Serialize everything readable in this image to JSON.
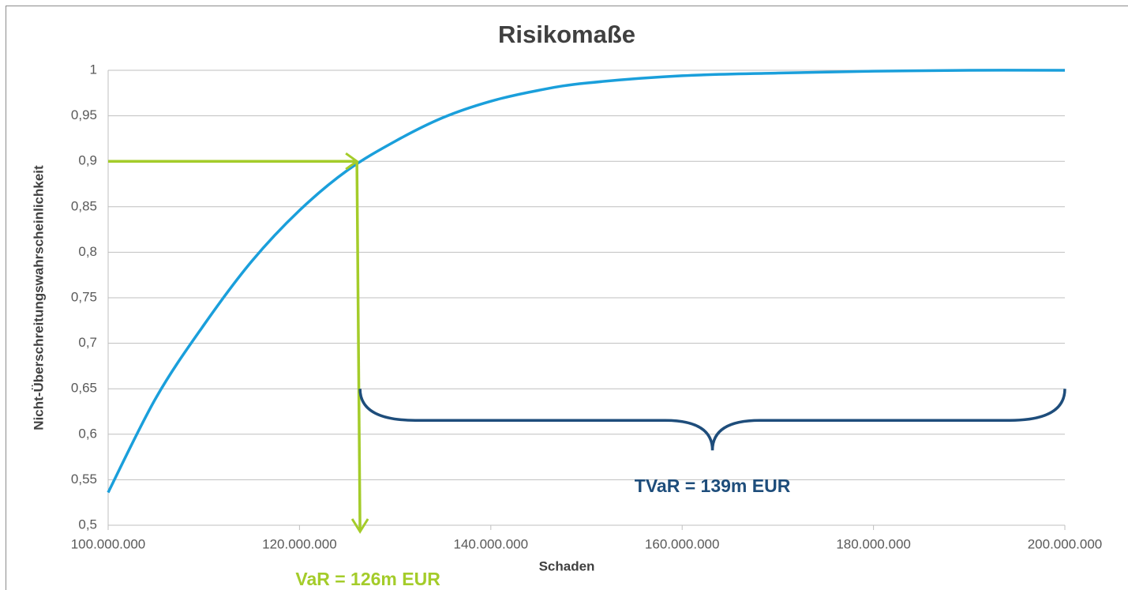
{
  "chart_data": {
    "type": "line",
    "title": "Risikomaße",
    "x_label": "Schaden",
    "y_label": "Nicht-Überschreitungswahrscheinlichkeit",
    "x": [
      100000000,
      105000000,
      110000000,
      115000000,
      120000000,
      125000000,
      130000000,
      135000000,
      140000000,
      145000000,
      150000000,
      160000000,
      170000000,
      180000000,
      190000000,
      200000000
    ],
    "series": [
      {
        "name": "Risikomaße",
        "color": "#1a9fdb",
        "values": [
          0.536,
          0.64,
          0.72,
          0.79,
          0.846,
          0.89,
          0.922,
          0.948,
          0.966,
          0.978,
          0.986,
          0.994,
          0.997,
          0.999,
          1,
          1
        ]
      }
    ],
    "xlim": [
      100000000,
      200000000
    ],
    "xticks": [
      {
        "value": 100000000,
        "label": "100.000.000"
      },
      {
        "value": 120000000,
        "label": "120.000.000"
      },
      {
        "value": 140000000,
        "label": "140.000.000"
      },
      {
        "value": 160000000,
        "label": "160.000.000"
      },
      {
        "value": 180000000,
        "label": "180.000.000"
      },
      {
        "value": 200000000,
        "label": "200.000.000"
      }
    ],
    "ylim": [
      0.5,
      1
    ],
    "yticks": [
      {
        "value": 0.5,
        "label": "0,5"
      },
      {
        "value": 0.55,
        "label": "0,55"
      },
      {
        "value": 0.6,
        "label": "0,6"
      },
      {
        "value": 0.65,
        "label": "0,65"
      },
      {
        "value": 0.7,
        "label": "0,7"
      },
      {
        "value": 0.75,
        "label": "0,75"
      },
      {
        "value": 0.8,
        "label": "0,8"
      },
      {
        "value": 0.85,
        "label": "0,85"
      },
      {
        "value": 0.9,
        "label": "0,9"
      },
      {
        "value": 0.95,
        "label": "0,95"
      },
      1
    ],
    "grid": true,
    "var": {
      "label": "VaR = 126m EUR",
      "value": 126000000,
      "level": 0.9,
      "color": "#a4cc2a"
    },
    "tvar": {
      "label": "TVaR = 139m EUR",
      "color": "#1e4d7b"
    }
  }
}
